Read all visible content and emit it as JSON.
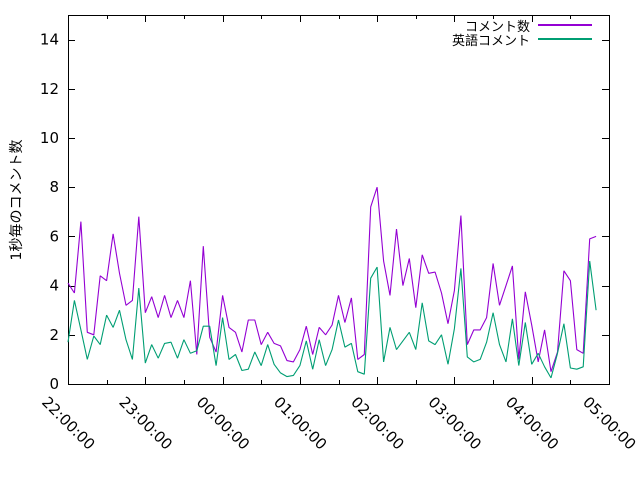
{
  "chart_data": {
    "type": "line",
    "title": "",
    "xlabel": "",
    "ylabel": "1秒毎のコメント数",
    "ylim": [
      0,
      15
    ],
    "yticks": [
      0,
      2,
      4,
      6,
      8,
      10,
      12,
      14
    ],
    "xrange": [
      "22:00",
      "05:00"
    ],
    "xticks": [
      "22:00:00",
      "23:00:00",
      "00:00:00",
      "01:00:00",
      "02:00:00",
      "03:00:00",
      "04:00:00",
      "05:00:00"
    ],
    "x_minor_tick_interval": "30min",
    "grid": false,
    "legend_position": "top-right-inside",
    "axis_color": "#000000",
    "background": "#ffffff",
    "x": [
      "22:00",
      "22:05",
      "22:10",
      "22:15",
      "22:20",
      "22:25",
      "22:30",
      "22:35",
      "22:40",
      "22:45",
      "22:50",
      "22:55",
      "23:00",
      "23:05",
      "23:10",
      "23:15",
      "23:20",
      "23:25",
      "23:30",
      "23:35",
      "23:40",
      "23:45",
      "23:50",
      "23:55",
      "00:00",
      "00:05",
      "00:10",
      "00:15",
      "00:20",
      "00:25",
      "00:30",
      "00:35",
      "00:40",
      "00:45",
      "00:50",
      "00:55",
      "01:00",
      "01:05",
      "01:10",
      "01:15",
      "01:20",
      "01:25",
      "01:30",
      "01:35",
      "01:40",
      "01:45",
      "01:50",
      "01:55",
      "02:00",
      "02:05",
      "02:10",
      "02:15",
      "02:20",
      "02:25",
      "02:30",
      "02:35",
      "02:40",
      "02:45",
      "02:50",
      "02:55",
      "03:00",
      "03:05",
      "03:10",
      "03:15",
      "03:20",
      "03:25",
      "03:30",
      "03:35",
      "03:40",
      "03:45",
      "03:50",
      "03:55",
      "04:00",
      "04:05",
      "04:10",
      "04:15",
      "04:20",
      "04:25",
      "04:30",
      "04:35",
      "04:40",
      "04:45",
      "04:50"
    ],
    "series": [
      {
        "name": "コメント数",
        "color": "#9400d3",
        "values": [
          4.1,
          3.7,
          6.6,
          2.1,
          2.0,
          4.4,
          4.2,
          6.1,
          4.5,
          3.2,
          3.4,
          6.8,
          2.9,
          3.55,
          2.7,
          3.6,
          2.7,
          3.4,
          2.7,
          4.2,
          1.2,
          5.6,
          1.9,
          1.3,
          3.6,
          2.3,
          2.1,
          1.3,
          2.6,
          2.6,
          1.6,
          2.1,
          1.65,
          1.55,
          0.95,
          0.9,
          1.4,
          2.35,
          1.2,
          2.3,
          2.0,
          2.4,
          3.6,
          2.5,
          3.5,
          1.0,
          1.2,
          7.2,
          8.0,
          5.0,
          3.6,
          6.3,
          4.0,
          5.1,
          3.1,
          5.25,
          4.5,
          4.55,
          3.7,
          2.45,
          3.8,
          6.85,
          1.6,
          2.2,
          2.2,
          2.7,
          4.9,
          3.2,
          4.0,
          4.8,
          1.0,
          3.75,
          2.4,
          0.9,
          2.2,
          0.5,
          1.3,
          4.6,
          4.2,
          1.4,
          1.25,
          5.9,
          6.0
        ]
      },
      {
        "name": "英語コメント",
        "color": "#009e73",
        "values": [
          1.7,
          3.4,
          2.2,
          1.0,
          1.95,
          1.6,
          2.8,
          2.3,
          3.0,
          1.8,
          1.0,
          3.9,
          0.85,
          1.6,
          1.05,
          1.65,
          1.7,
          1.05,
          1.8,
          1.25,
          1.35,
          2.35,
          2.35,
          0.75,
          2.7,
          1.0,
          1.2,
          0.55,
          0.6,
          1.3,
          0.75,
          1.6,
          0.8,
          0.45,
          0.3,
          0.35,
          0.75,
          1.75,
          0.6,
          1.8,
          0.75,
          1.4,
          2.6,
          1.5,
          1.65,
          0.5,
          0.4,
          4.3,
          4.75,
          0.9,
          2.3,
          1.4,
          1.75,
          2.1,
          1.4,
          3.3,
          1.75,
          1.6,
          2.0,
          0.8,
          2.25,
          4.7,
          1.1,
          0.9,
          1.0,
          1.7,
          2.9,
          1.6,
          0.9,
          2.65,
          0.75,
          2.5,
          0.8,
          1.25,
          0.7,
          0.25,
          1.25,
          2.45,
          0.65,
          0.6,
          0.7,
          5.0,
          3.0
        ]
      }
    ]
  }
}
